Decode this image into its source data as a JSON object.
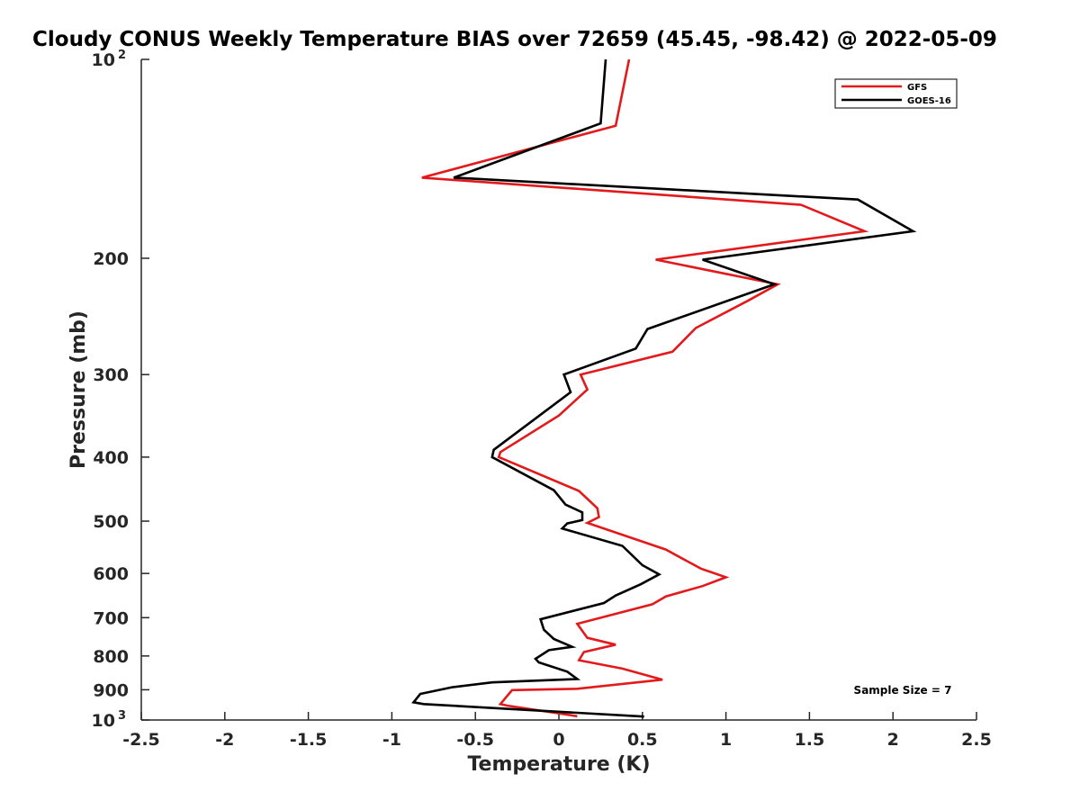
{
  "chart_data": {
    "type": "line",
    "title": "Cloudy CONUS Weekly Temperature BIAS over 72659 (45.45, -98.42) @ 2022-05-09",
    "xlabel": "Temperature (K)",
    "ylabel": "Pressure (mb)",
    "xlim": [
      -2.5,
      2.5
    ],
    "ylim": [
      1000,
      100
    ],
    "yscale": "log",
    "xticks": [
      "-2.5",
      "-2",
      "-1.5",
      "-1",
      "-0.5",
      "0",
      "0.5",
      "1",
      "1.5",
      "2",
      "2.5"
    ],
    "yticks": [
      {
        "value": 100,
        "label": "10",
        "sup": "2"
      },
      {
        "value": 200,
        "label": "200"
      },
      {
        "value": 300,
        "label": "300"
      },
      {
        "value": 400,
        "label": "400"
      },
      {
        "value": 500,
        "label": "500"
      },
      {
        "value": 600,
        "label": "600"
      },
      {
        "value": 700,
        "label": "700"
      },
      {
        "value": 800,
        "label": "800"
      },
      {
        "value": 900,
        "label": "900"
      },
      {
        "value": 1000,
        "label": "10",
        "sup": "3"
      }
    ],
    "grid": false,
    "legend": "top-right",
    "annotation": "Sample Size = 7",
    "series": [
      {
        "name": "GFS",
        "color": "#e31a1c",
        "x": [
          0.42,
          0.34,
          -0.82,
          1.45,
          1.83,
          0.58,
          1.31,
          1.13,
          0.82,
          0.68,
          0.13,
          0.17,
          0.0,
          -0.35,
          -0.36,
          0.12,
          0.23,
          0.24,
          0.17,
          0.64,
          0.85,
          1.0,
          0.86,
          0.64,
          0.56,
          0.11,
          0.17,
          0.34,
          0.15,
          0.12,
          0.38,
          0.62,
          0.11,
          -0.28,
          -0.29,
          -0.35,
          -0.31,
          0.11
        ],
        "y": [
          100,
          126,
          151,
          166,
          182,
          201,
          219,
          232,
          255,
          277,
          300,
          316,
          346,
          393,
          400,
          450,
          478,
          493,
          503,
          552,
          590,
          608,
          627,
          650,
          668,
          715,
          751,
          769,
          789,
          812,
          836,
          869,
          897,
          901,
          907,
          946,
          951,
          987
        ]
      },
      {
        "name": "GOES-16",
        "color": "#000000",
        "x": [
          0.28,
          0.25,
          -0.63,
          1.79,
          2.12,
          0.86,
          1.29,
          0.53,
          0.46,
          0.03,
          0.07,
          -0.39,
          -0.4,
          -0.03,
          0.04,
          0.14,
          0.14,
          0.05,
          0.02,
          0.38,
          0.5,
          0.6,
          0.49,
          0.34,
          0.27,
          -0.11,
          -0.09,
          -0.03,
          0.08,
          -0.06,
          -0.14,
          -0.12,
          0.05,
          0.11,
          -0.4,
          -0.64,
          -0.83,
          -0.87,
          -0.81,
          0.51
        ],
        "y": [
          100,
          125,
          151,
          163,
          182,
          201,
          219,
          256,
          274,
          300,
          319,
          390,
          400,
          449,
          472,
          485,
          498,
          504,
          513,
          545,
          583,
          602,
          623,
          648,
          665,
          704,
          730,
          754,
          775,
          784,
          808,
          818,
          845,
          867,
          877,
          892,
          913,
          940,
          946,
          988
        ]
      }
    ]
  }
}
